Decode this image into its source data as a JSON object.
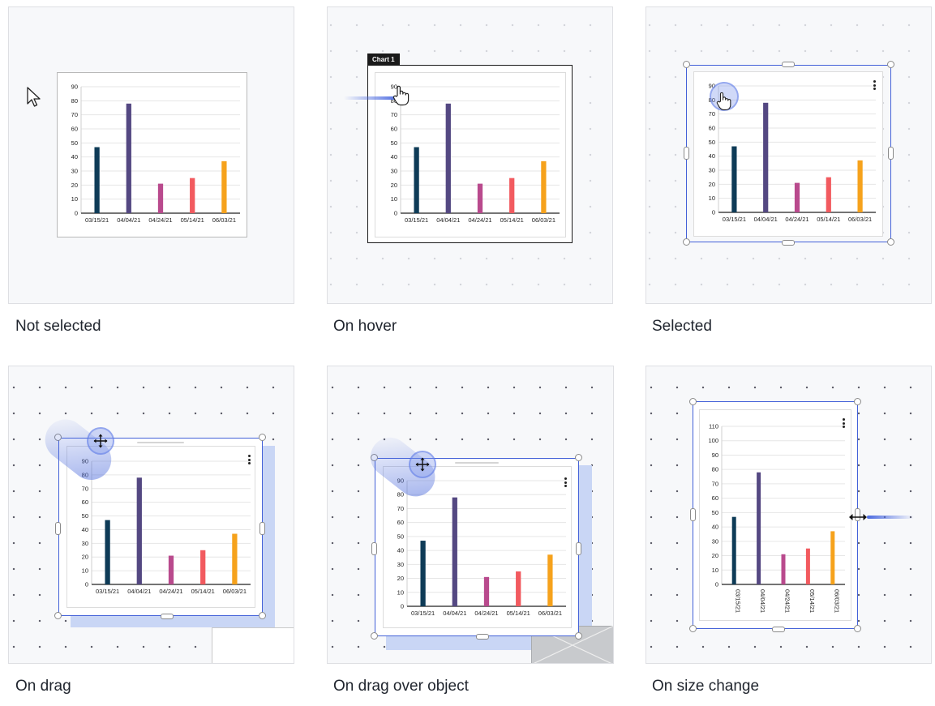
{
  "captions": {
    "not_selected": "Not selected",
    "on_hover": "On hover",
    "selected": "Selected",
    "on_drag": "On drag",
    "on_drag_over_object": "On drag over object",
    "on_size_change": "On size change"
  },
  "hover_tag": "Chart 1",
  "chart_data": [
    {
      "type": "bar",
      "title": "",
      "xlabel": "",
      "ylabel": "",
      "categories": [
        "03/15/21",
        "04/04/21",
        "04/24/21",
        "05/14/21",
        "06/03/21"
      ],
      "values": [
        47,
        78,
        21,
        25,
        37
      ],
      "ylim": [
        0,
        90
      ],
      "yticks": [
        0,
        10,
        20,
        30,
        40,
        50,
        60,
        70,
        80,
        90
      ],
      "grid": true
    },
    {
      "type": "bar",
      "title": "",
      "xlabel": "",
      "ylabel": "",
      "categories": [
        "03/15/21",
        "04/04/21",
        "04/24/21",
        "05/14/21",
        "06/03/21"
      ],
      "values": [
        47,
        78,
        21,
        25,
        37
      ],
      "ylim": [
        0,
        110
      ],
      "yticks": [
        0,
        10,
        20,
        30,
        40,
        50,
        60,
        70,
        80,
        90,
        100,
        110
      ],
      "grid": true,
      "xtick_rotation": "vertical"
    }
  ],
  "colors": {
    "bars": [
      "#0e3b57",
      "#544882",
      "#b94a8d",
      "#f25a5f",
      "#f6a21c"
    ],
    "selection": "#4361d8",
    "grid": "#e6e6e6"
  },
  "icons": {
    "cursor": "arrow-cursor-icon",
    "hand": "pointer-hand-icon",
    "move": "move-arrows-icon",
    "resize": "resize-horizontal-icon",
    "menu": "kebab-menu-icon"
  }
}
